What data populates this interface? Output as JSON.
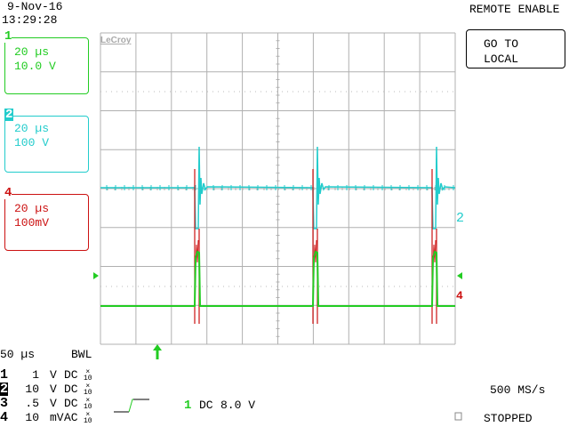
{
  "header": {
    "date": "9-Nov-16",
    "time": "13:29:28",
    "remote_status": "REMOTE ENABLE"
  },
  "buttons": {
    "go_to_local_line1": "GO TO",
    "go_to_local_line2": "LOCAL"
  },
  "brand": "LeCroy",
  "channel_boxes": [
    {
      "num": "1",
      "time": "20 µs",
      "scale": "10.0 V",
      "color": "#22cc22"
    },
    {
      "num": "2",
      "time": "20 µs",
      "scale": "100 V",
      "color": "#22cccc"
    },
    {
      "num": "4",
      "time": "20 µs",
      "scale": "100mV",
      "color": "#cc1111"
    }
  ],
  "timebase": {
    "value": "50 µs",
    "bwl": "BWL"
  },
  "channels": [
    {
      "num": "1",
      "volts": "1",
      "unit": "V",
      "coupling": "DC",
      "probe": "10"
    },
    {
      "num": "2",
      "volts": "10",
      "unit": "V",
      "coupling": "DC",
      "probe": "10"
    },
    {
      "num": "3",
      "volts": ".5",
      "unit": "V",
      "coupling": "DC",
      "probe": "10"
    },
    {
      "num": "4",
      "volts": "10",
      "unit": "mV",
      "coupling": "AC",
      "probe": "10"
    }
  ],
  "trigger": {
    "source": "1",
    "coupling": "DC",
    "level": "8.0 V"
  },
  "sample_rate": "500 MS/s",
  "acq_status": "STOPPED",
  "markers": {
    "ch2": "2",
    "ch4": "4"
  },
  "colors": {
    "ch1": "#22cc22",
    "ch2": "#22cccc",
    "ch4": "#cc1111",
    "grid": "#b0b0b0"
  }
}
